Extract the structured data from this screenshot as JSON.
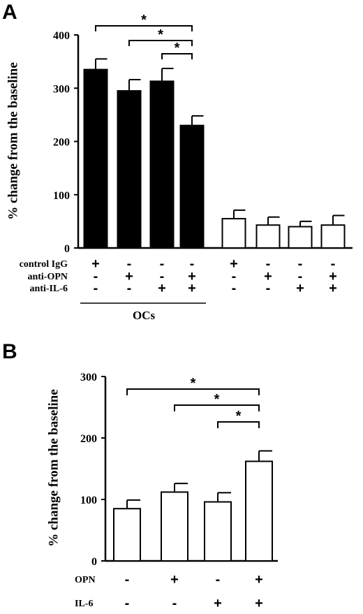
{
  "chart_data": [
    {
      "type": "bar",
      "panel": "A",
      "ylabel": "% change from the baseline",
      "ylim": [
        0,
        400
      ],
      "yticks": [
        "0",
        "100",
        "200",
        "300",
        "400"
      ],
      "conditions": [
        {
          "label": "control IgG",
          "signs": [
            "+",
            "-",
            "-",
            "-",
            "+",
            "-",
            "-",
            "-"
          ]
        },
        {
          "label": "anti-OPN",
          "signs": [
            "-",
            "+",
            "-",
            "+",
            "-",
            "+",
            "-",
            "+"
          ]
        },
        {
          "label": "anti-IL-6",
          "signs": [
            "-",
            "-",
            "+",
            "+",
            "-",
            "-",
            "+",
            "+"
          ]
        }
      ],
      "group_label": "OCs",
      "values": [
        335,
        295,
        313,
        230,
        55,
        43,
        40,
        43
      ],
      "errors": [
        20,
        21,
        24,
        18,
        16,
        15,
        10,
        18
      ],
      "fills": [
        "#000000",
        "#000000",
        "#000000",
        "#000000",
        "#ffffff",
        "#ffffff",
        "#ffffff",
        "#ffffff"
      ],
      "significance": [
        {
          "from": 0,
          "to": 3,
          "label": "*"
        },
        {
          "from": 1,
          "to": 3,
          "label": "*"
        },
        {
          "from": 2,
          "to": 3,
          "label": "*"
        }
      ]
    },
    {
      "type": "bar",
      "panel": "B",
      "ylabel": "% change from the baseline",
      "ylim": [
        0,
        300
      ],
      "yticks": [
        "0",
        "100",
        "200",
        "300"
      ],
      "conditions": [
        {
          "label": "OPN",
          "signs": [
            "-",
            "+",
            "-",
            "+"
          ]
        },
        {
          "label": "IL-6",
          "signs": [
            "-",
            "-",
            "+",
            "+"
          ]
        }
      ],
      "values": [
        85,
        112,
        96,
        162
      ],
      "errors": [
        14,
        14,
        15,
        17
      ],
      "fills": [
        "#ffffff",
        "#ffffff",
        "#ffffff",
        "#ffffff"
      ],
      "significance": [
        {
          "from": 0,
          "to": 3,
          "label": "*"
        },
        {
          "from": 1,
          "to": 3,
          "label": "*"
        },
        {
          "from": 2,
          "to": 3,
          "label": "*"
        }
      ]
    }
  ]
}
